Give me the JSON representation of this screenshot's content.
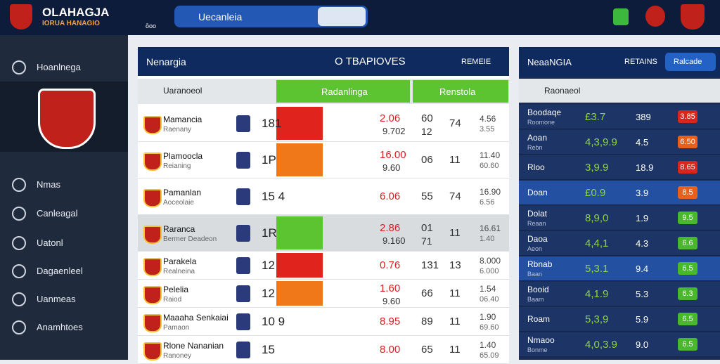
{
  "header": {
    "logo_title": "OLAHAGJA",
    "logo_subtitle": "IORUA HANAGIO",
    "search_placeholder": "Uecanleia",
    "icon_caption": "ōoo"
  },
  "sidebar": {
    "items": [
      "Hoanlnega",
      "Nmas",
      "Canleagal",
      "Uatonl",
      "Dagaenleel",
      "Uanmeas",
      "Anamhtoes"
    ]
  },
  "main": {
    "title": "Nenargia",
    "center_title": "O TBAPIOVES",
    "link": "REMEIE",
    "columns": [
      "Uaranoeol",
      "Radanlinga",
      "Renstola"
    ],
    "groups": [
      [
        {
          "name": "Mamancia",
          "sub": "Raenany",
          "score": "181",
          "bar_color": "#e0231c",
          "odd_a": "2.06",
          "odd_b": "9.702",
          "n1": "60",
          "n1b": "12",
          "n2": "74",
          "n3": "4.56",
          "n3b": "3.55"
        },
        {
          "name": "Plamoocla",
          "sub": "Reianing",
          "score": "1P",
          "bar_color": "#f07818",
          "odd_a": "16.00",
          "odd_b": "9.60",
          "n1": "06",
          "n1b": "",
          "n2": "11",
          "n3": "11.40",
          "n3b": "60.60"
        },
        {
          "name": "Pamanlan",
          "sub": "Aoceolaie",
          "score": "15 4",
          "bar_color": "#ffffff",
          "odd_a": "6.06",
          "odd_b": "",
          "n1": "55",
          "n1b": "",
          "n2": "74",
          "n3": "16.90",
          "n3b": "6.56"
        },
        {
          "name": "Raranca",
          "sub": "Bermer Deadeon",
          "score": "1R",
          "bar_color": "#5cc431",
          "odd_a": "2.86",
          "odd_b": "9.160",
          "n1": "01",
          "n1b": "71",
          "n2": "11",
          "n3": "16.61",
          "n3b": "1.40"
        }
      ],
      [
        {
          "name": "Parakela",
          "sub": "Realneina",
          "score": "12",
          "bar_color": "#e0231c",
          "odd_a": "0.76",
          "odd_b": "",
          "n1": "131",
          "n1b": "",
          "n2": "13",
          "n3": "8.000",
          "n3b": "6.000"
        },
        {
          "name": "Pelelia",
          "sub": "Raiod",
          "score": "12",
          "bar_color": "#f07818",
          "odd_a": "1.60",
          "odd_b": "9.60",
          "n1": "66",
          "n1b": "",
          "n2": "11",
          "n3": "1.54",
          "n3b": "06.40"
        },
        {
          "name": "Maaaha Senkaiai",
          "sub": "Pamaon",
          "score": "10 9",
          "bar_color": "#ffffff",
          "odd_a": "8.95",
          "odd_b": "",
          "n1": "89",
          "n1b": "",
          "n2": "11",
          "n3": "1.90",
          "n3b": "69.60"
        },
        {
          "name": "Rlone Nananian",
          "sub": "Ranoney",
          "score": "15",
          "bar_color": "#ffffff",
          "odd_a": "8.00",
          "odd_b": "",
          "n1": "65",
          "n1b": "",
          "n2": "11",
          "n3": "1.40",
          "n3b": "65.09"
        }
      ]
    ]
  },
  "side_panel": {
    "title": "NeaaNGIA",
    "link": "RETAINS",
    "button": "Ralcade",
    "subheader": "Raonaeol",
    "rows": [
      {
        "name": "Boodaqe",
        "sub": "Roomone",
        "odd": "£3.7",
        "n": "389",
        "badge": "3.85",
        "badge_color": "#d9261c"
      },
      {
        "name": "Aoan",
        "sub": "Rebn",
        "odd": "4,3,9.9",
        "n": "4.5",
        "badge": "6.50",
        "badge_color": "#e8601c"
      },
      {
        "name": "Rloo",
        "sub": "",
        "odd": "3,9.9",
        "n": "18.9",
        "badge": "8.65",
        "badge_color": "#d9261c"
      },
      {
        "name": "Doan",
        "sub": "",
        "odd": "£0.9",
        "n": "3.9",
        "badge": "8.5",
        "badge_color": "#e8601c"
      },
      {
        "name": "Dolat",
        "sub": "Reaan",
        "odd": "8,9,0",
        "n": "1.9",
        "badge": "9.5",
        "badge_color": "#49b82d"
      },
      {
        "name": "Daoa",
        "sub": "Aeon",
        "odd": "4,4,1",
        "n": "4.3",
        "badge": "6.6",
        "badge_color": "#49b82d"
      },
      {
        "name": "Rbnab",
        "sub": "Baan",
        "odd": "5,3.1",
        "n": "9.4",
        "badge": "6.5",
        "badge_color": "#49b82d"
      },
      {
        "name": "Booid",
        "sub": "Baam",
        "odd": "4,1.9",
        "n": "5.3",
        "badge": "6.3",
        "badge_color": "#49b82d"
      },
      {
        "name": "Roam",
        "sub": "",
        "odd": "5,3,9",
        "n": "5.9",
        "badge": "6.5",
        "badge_color": "#49b82d"
      },
      {
        "name": "Nmaoo",
        "sub": "Bonme",
        "odd": "4,0,3.9",
        "n": "9.0",
        "badge": "6.5",
        "badge_color": "#49b82d"
      }
    ]
  }
}
